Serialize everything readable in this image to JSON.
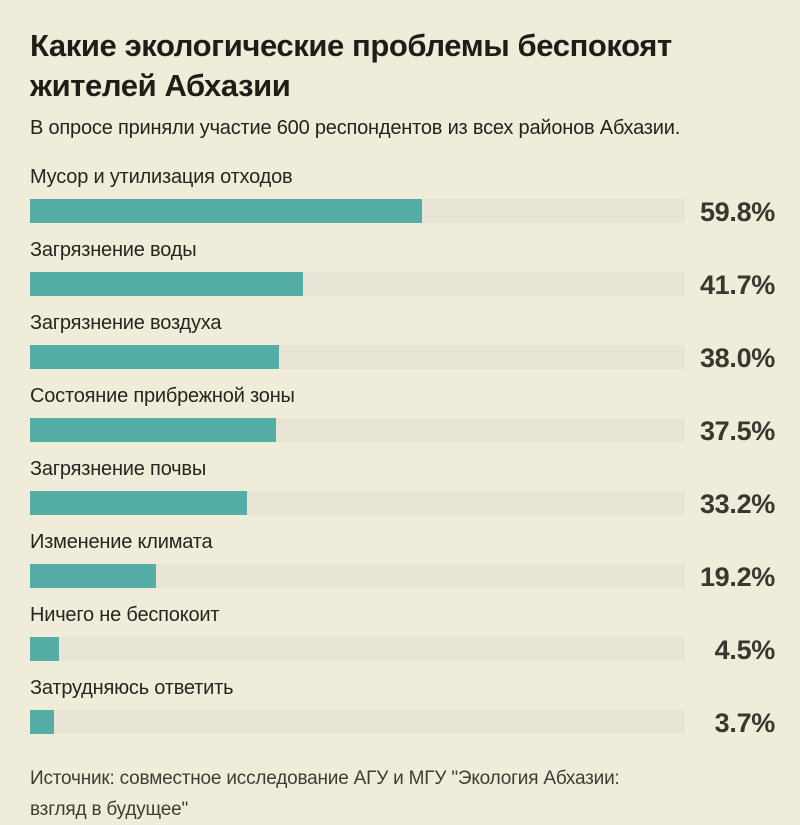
{
  "header": {
    "title": "Какие экологические проблемы беспокоят жителей Абхазии",
    "title_lines": [
      "Какие экологические проблемы беспокоят",
      "жителей Абхазии"
    ],
    "subtitle": "В опросе приняли участие 600 респондентов из всех районов Абхазии."
  },
  "footer": {
    "source": "Источник: совместное исследование АГУ и МГУ \"Экология Абхазии: взгляд в будущее\"",
    "source_lines": [
      "Источник: совместное исследование АГУ и МГУ \"Экология Абхазии:",
      "взгляд в будущее\""
    ]
  },
  "colors": {
    "background": "#efecd9",
    "bar_fill": "#55aea6",
    "bar_track": "#e8e5d6",
    "title_text": "#1e1d18",
    "value_text": "#3a3731"
  },
  "chart_data": {
    "type": "bar",
    "orientation": "horizontal",
    "title": "Какие экологические проблемы беспокоят жителей Абхазии",
    "subtitle": "В опросе приняли участие 600 респондентов из всех районов Абхазии.",
    "categories": [
      "Мусор и утилизация отходов",
      "Загрязнение воды",
      "Загрязнение воздуха",
      "Состояние прибрежной зоны",
      "Загрязнение почвы",
      "Изменение климата",
      "Ничего не беспокоит",
      "Затрудняюсь ответить"
    ],
    "values": [
      59.8,
      41.7,
      38.0,
      37.5,
      33.2,
      19.2,
      4.5,
      3.7
    ],
    "value_labels": [
      "59.8%",
      "41.7%",
      "38.0%",
      "37.5%",
      "33.2%",
      "19.2%",
      "4.5%",
      "3.7%"
    ],
    "xlim": [
      0,
      100
    ],
    "grid": false,
    "legend": false,
    "value_label_position": "right-of-track"
  }
}
